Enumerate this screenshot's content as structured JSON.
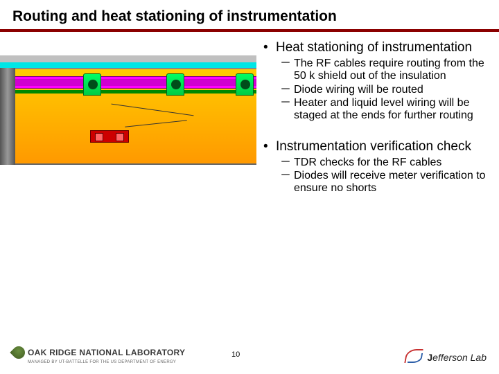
{
  "title": "Routing and heat stationing of instrumentation",
  "title_rule_color": "#8b0000",
  "bullets": {
    "b1": {
      "text": "Heat stationing of instrumentation",
      "subs": {
        "s1": "The RF cables require routing from the 50 k shield out of the insulation",
        "s2": "Diode wiring will be routed",
        "s3": "Heater and liquid level wiring will be staged at the ends for further routing"
      }
    },
    "b2": {
      "text": "Instrumentation verification check",
      "subs": {
        "s1": "TDR checks for the RF cables",
        "s2": "Diodes will receive meter verification to ensure no shorts"
      }
    }
  },
  "figure": {
    "colors": {
      "body_top": "#ffcc00",
      "body_bottom": "#ff9900",
      "rail": "#ff00ff",
      "bracket": "#00ff66",
      "accent_bar": "#008800",
      "top_strip1": "#c0c0c0",
      "top_strip2": "#00e6e6",
      "redbox": "#cc0000",
      "frame": "#777777"
    }
  },
  "footer": {
    "page_number": "10",
    "ornl_text": "OAK RIDGE NATIONAL LABORATORY",
    "ornl_sub": "MANAGED BY UT-BATTELLE FOR THE US DEPARTMENT OF ENERGY",
    "jlab_name_1": "J",
    "jlab_name_2": "efferson ",
    "jlab_name_3": "Lab"
  }
}
